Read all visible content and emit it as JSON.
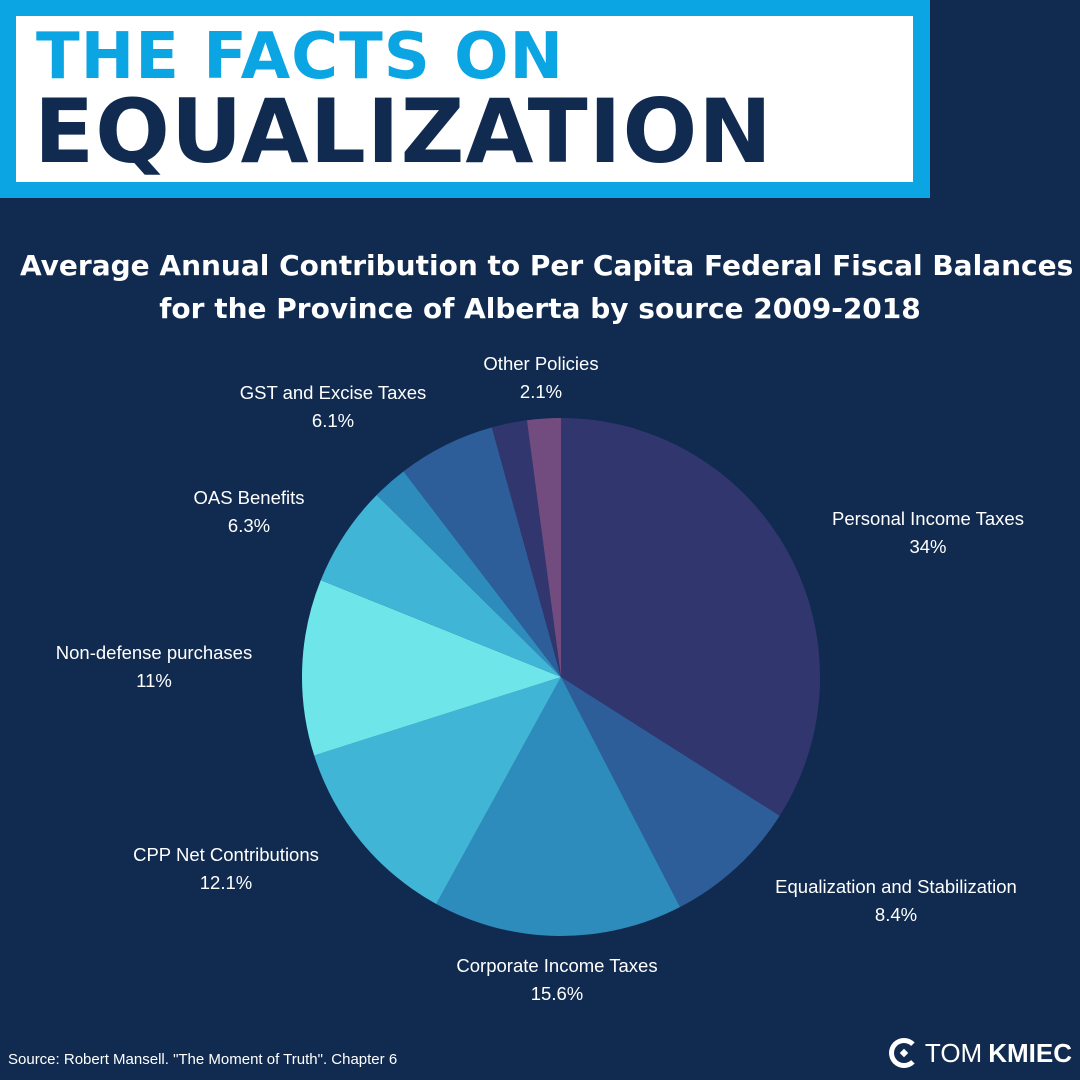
{
  "header": {
    "line1": "THE FACTS ON",
    "line2": "EQUALIZATION"
  },
  "colors": {
    "background": "#112b50",
    "header_accent": "#0aa5e2",
    "header_text_dark": "#112b50"
  },
  "chart_data": {
    "type": "pie",
    "title": "Average Annual Contribution to Per Capita Federal Fiscal Balances for the Province of Alberta by source 2009-2018",
    "title_lines": [
      "Average Annual Contribution to Per Capita Federal Fiscal Balances",
      "for the Province of Alberta by source 2009-2018"
    ],
    "start_angle_deg": 0,
    "direction": "clockwise",
    "slices": [
      {
        "label": "Personal Income Taxes",
        "value_text": "34%",
        "value": 34.0,
        "color": "#32366e"
      },
      {
        "label": "Equalization and Stabilization",
        "value_text": "8.4%",
        "value": 8.4,
        "color": "#2d5e99"
      },
      {
        "label": "Corporate Income Taxes",
        "value_text": "15.6%",
        "value": 15.6,
        "color": "#2e8cbd"
      },
      {
        "label": "CPP Net Contributions",
        "value_text": "12.1%",
        "value": 12.1,
        "color": "#41b5d6"
      },
      {
        "label": "Non-defense purchases",
        "value_text": "11%",
        "value": 11.0,
        "color": "#6de5e9"
      },
      {
        "label": "OAS Benefits",
        "value_text": "6.3%",
        "value": 6.3,
        "color": "#41b5d6"
      },
      {
        "label": "",
        "value_text": "",
        "value": 2.2,
        "color": "#2e8cbd"
      },
      {
        "label": "GST and Excise Taxes",
        "value_text": "6.1%",
        "value": 6.1,
        "color": "#2d5e99"
      },
      {
        "label": "",
        "value_text": "",
        "value": 2.2,
        "color": "#32366e"
      },
      {
        "label": "Other Policies",
        "value_text": "2.1%",
        "value": 2.1,
        "color": "#724c7f"
      }
    ]
  },
  "footer": {
    "source": "Source: Robert Mansell. \"The Moment of Truth\". Chapter 6",
    "brand_first": "TOM",
    "brand_last": "KMIEC"
  }
}
